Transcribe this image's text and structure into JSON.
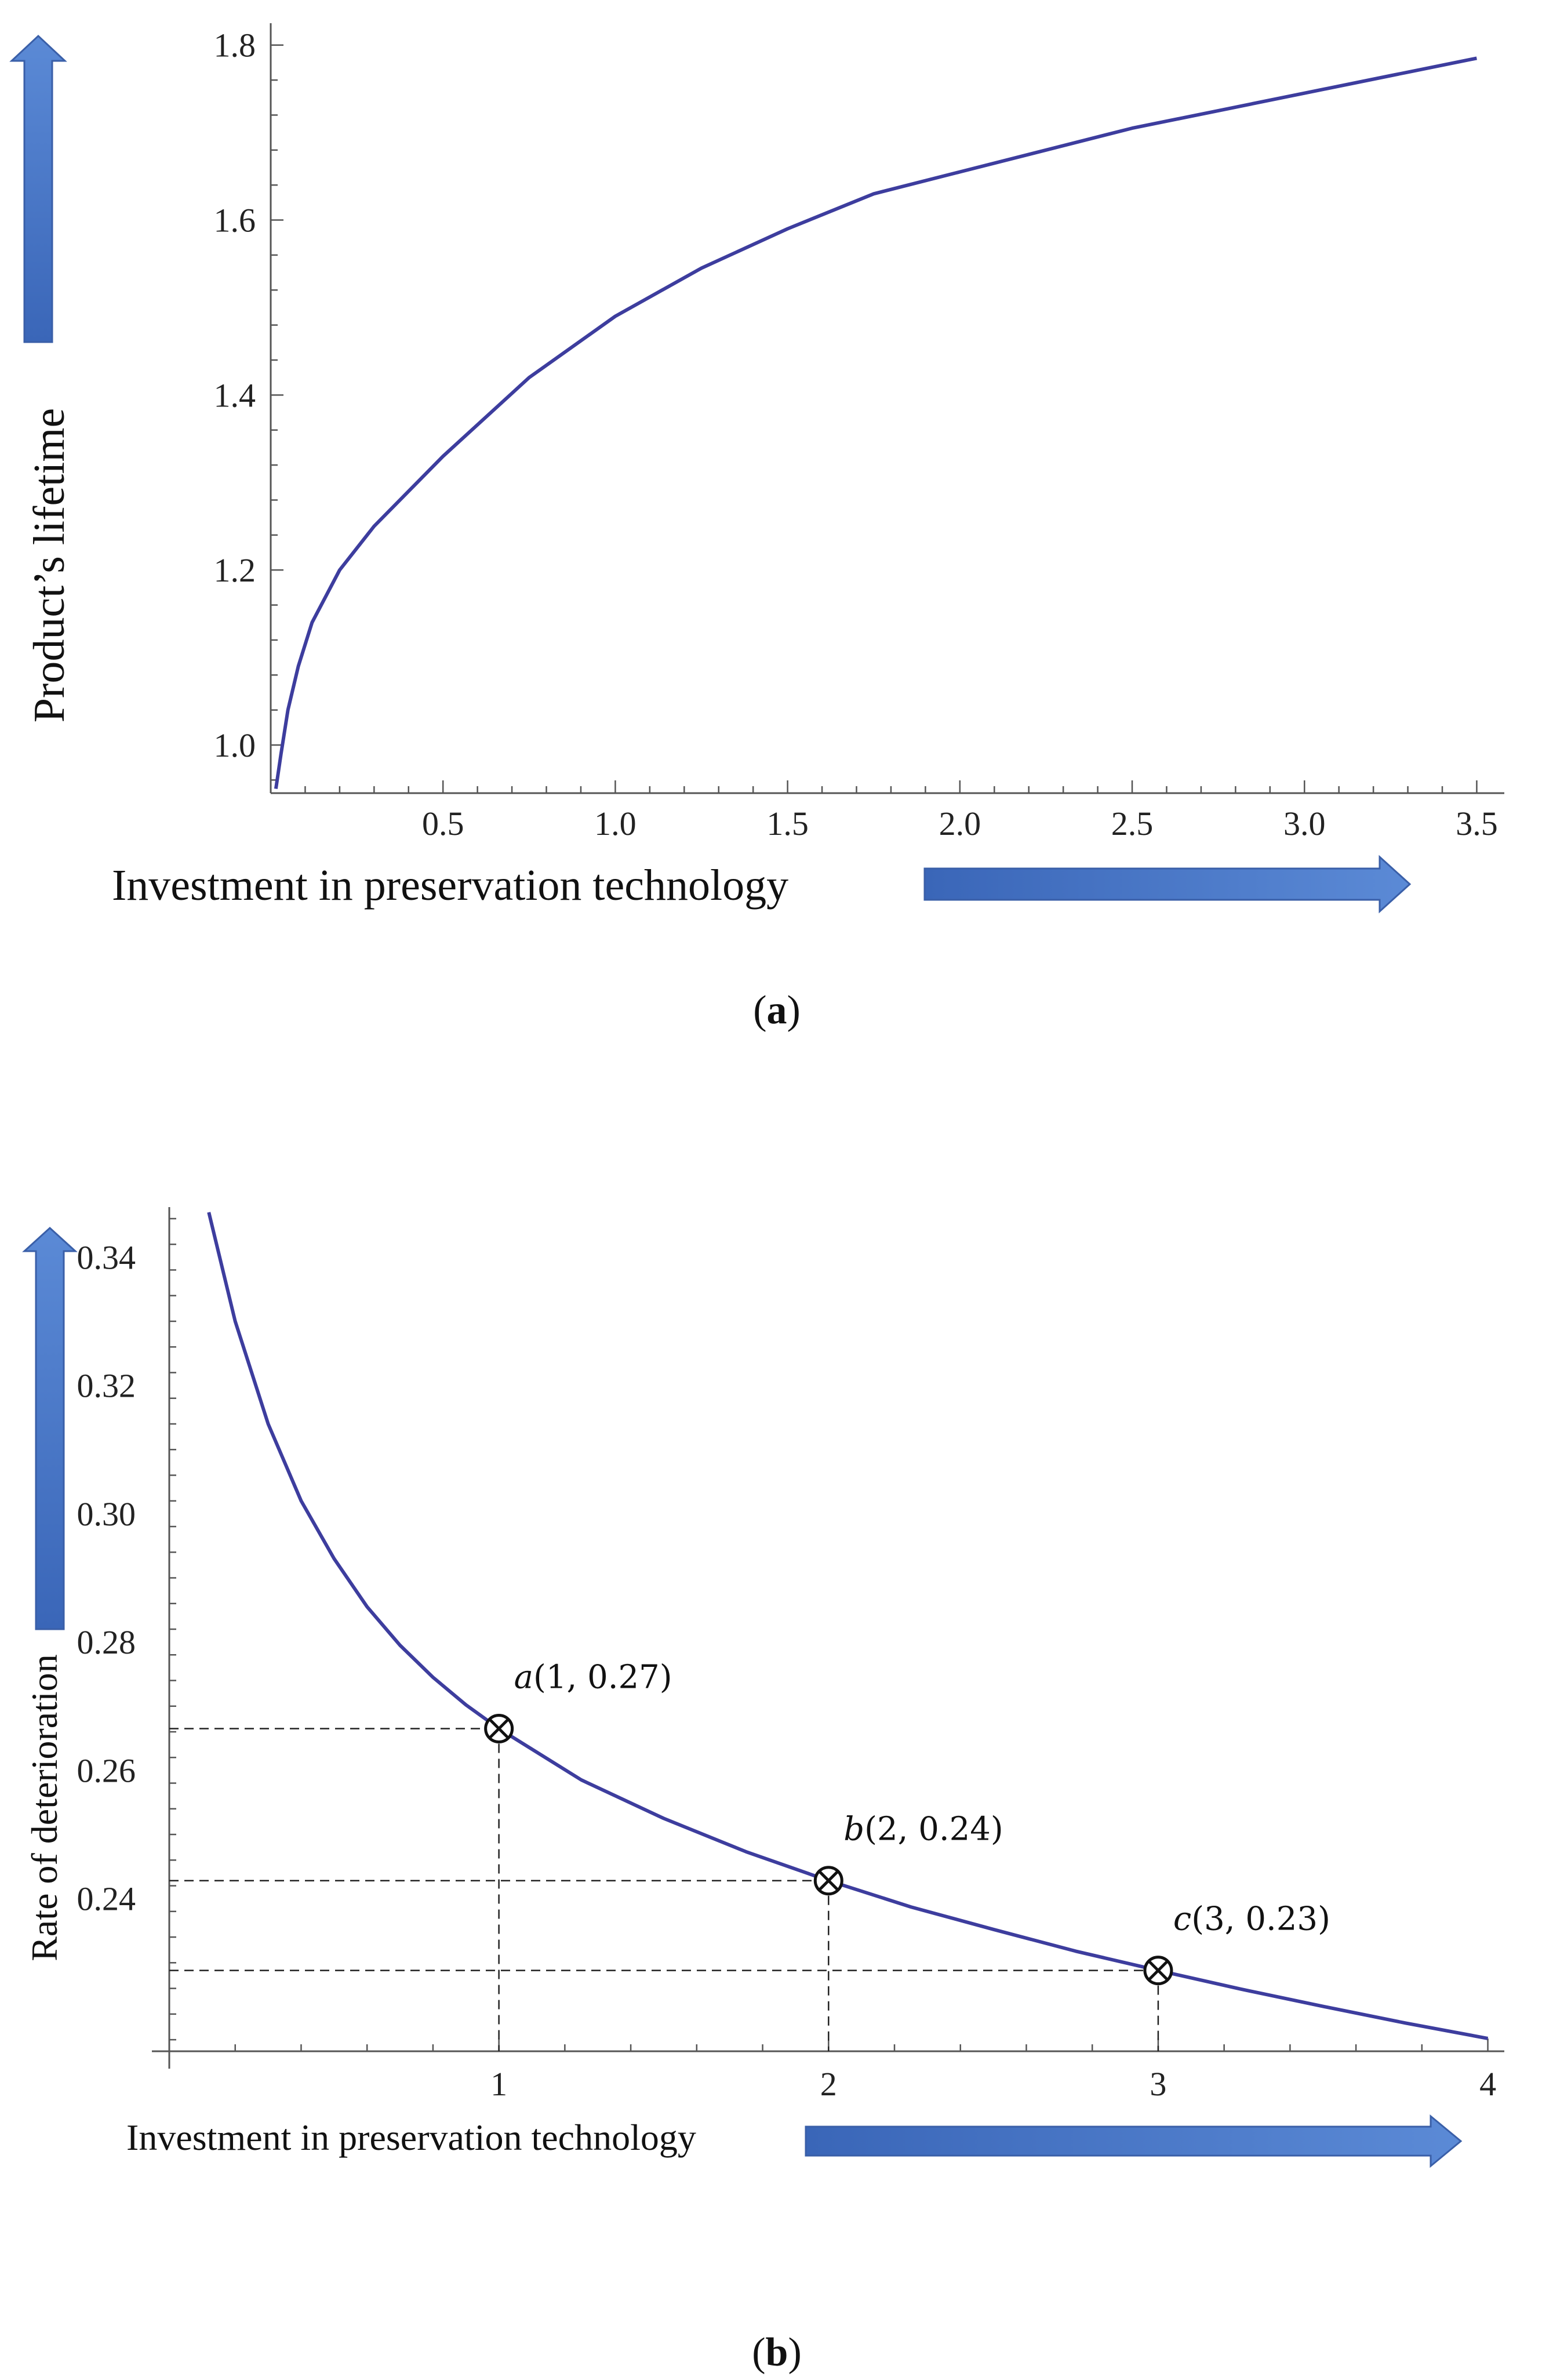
{
  "colors": {
    "curve": "#3d3d9e",
    "arrow": "#4472c4",
    "axis": "#555555",
    "guide": "#222222"
  },
  "chart_data": [
    {
      "type": "line",
      "id": "a",
      "caption_open": "(",
      "caption_letter": "a",
      "caption_close": ")",
      "title": "",
      "xlabel": "Investment in preservation technology",
      "ylabel": "Product’s lifetime",
      "xlim": [
        0,
        3.58
      ],
      "ylim": [
        0.945,
        1.825
      ],
      "xticks": [
        0.5,
        1.0,
        1.5,
        2.0,
        2.5,
        3.0,
        3.5
      ],
      "xtick_labels": [
        "0.5",
        "1.0",
        "1.5",
        "2.0",
        "2.5",
        "3.0",
        "3.5"
      ],
      "yticks": [
        1.0,
        1.2,
        1.4,
        1.6,
        1.8
      ],
      "ytick_labels": [
        "1.0",
        "1.2",
        "1.4",
        "1.6",
        "1.8"
      ],
      "series": [
        {
          "name": "Product’s lifetime",
          "x": [
            0.015,
            0.03,
            0.05,
            0.08,
            0.12,
            0.2,
            0.3,
            0.5,
            0.75,
            1.0,
            1.25,
            1.5,
            1.75,
            2.0,
            2.25,
            2.5,
            2.75,
            3.0,
            3.25,
            3.5
          ],
          "y": [
            0.95,
            0.99,
            1.04,
            1.09,
            1.14,
            1.2,
            1.25,
            1.33,
            1.42,
            1.49,
            1.545,
            1.59,
            1.63,
            1.655,
            1.68,
            1.705,
            1.725,
            1.745,
            1.765,
            1.785
          ]
        }
      ]
    },
    {
      "type": "line",
      "id": "b",
      "caption_open": "(",
      "caption_letter": "b",
      "caption_close": ")",
      "title": "",
      "xlabel": "Investment in preservation technology",
      "ylabel": "Rate of deterioration",
      "xlim": [
        0,
        4.05
      ],
      "ylim": [
        0.2162,
        0.3478
      ],
      "xticks": [
        1,
        2,
        3,
        4
      ],
      "xtick_labels": [
        "1",
        "2",
        "3",
        "4"
      ],
      "yticks": [
        0.24,
        0.26,
        0.28,
        0.3,
        0.32,
        0.34
      ],
      "ytick_labels": [
        "0.24",
        "0.26",
        "0.28",
        "0.30",
        "0.32",
        "0.34"
      ],
      "series": [
        {
          "name": "Rate of deterioration",
          "x": [
            0.12,
            0.2,
            0.3,
            0.4,
            0.5,
            0.6,
            0.7,
            0.8,
            0.9,
            1.0,
            1.25,
            1.5,
            1.75,
            2.0,
            2.25,
            2.5,
            2.75,
            3.0,
            3.25,
            3.5,
            3.75,
            4.0
          ],
          "y": [
            0.347,
            0.33,
            0.314,
            0.302,
            0.293,
            0.2855,
            0.2795,
            0.2745,
            0.2702,
            0.2665,
            0.2585,
            0.2525,
            0.2473,
            0.2428,
            0.2387,
            0.2352,
            0.2318,
            0.2288,
            0.2259,
            0.2232,
            0.2206,
            0.2182
          ]
        }
      ],
      "points": [
        {
          "name": "a",
          "label": "(1, 0.27)",
          "x": 1,
          "y": 0.2665
        },
        {
          "name": "b",
          "label": "(2, 0.24)",
          "x": 2,
          "y": 0.2428
        },
        {
          "name": "c",
          "label": "(3, 0.23)",
          "x": 3,
          "y": 0.2288
        }
      ]
    }
  ]
}
